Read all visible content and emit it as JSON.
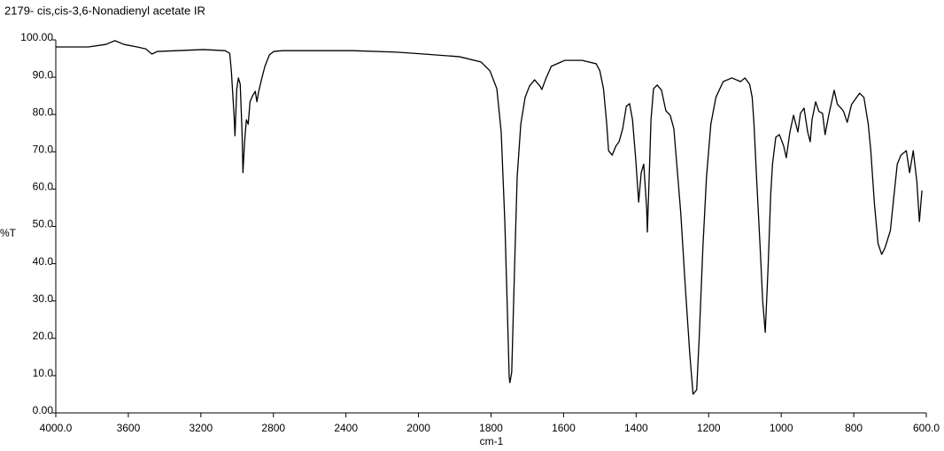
{
  "chart_data": {
    "type": "line",
    "title": "2179- cis,cis-3,6-Nonadienyl acetate IR",
    "x_label": "cm-1",
    "y_label": "%T",
    "xlim": [
      4000,
      600
    ],
    "ylim": [
      0,
      100
    ],
    "x_ticks_evenly_spaced": true,
    "xticks": [
      {
        "value": 4000,
        "label": "4000.0"
      },
      3600,
      3200,
      2800,
      2400,
      2000,
      1800,
      1600,
      1400,
      1200,
      1000,
      800,
      {
        "value": 600,
        "label": "600.0"
      }
    ],
    "yticks": [
      {
        "value": 0,
        "label": "0.00"
      },
      {
        "value": 10,
        "label": "10.0"
      },
      {
        "value": 20,
        "label": "20.0"
      },
      {
        "value": 30,
        "label": "30.0"
      },
      {
        "value": 40,
        "label": "40.0"
      },
      {
        "value": 50,
        "label": "50.0"
      },
      {
        "value": 60,
        "label": "60.0"
      },
      {
        "value": 70,
        "label": "70.0"
      },
      {
        "value": 80,
        "label": "80.0"
      },
      {
        "value": 90,
        "label": "90.0"
      },
      {
        "value": 100,
        "label": "100.00"
      }
    ],
    "grid": false,
    "color": "#000000",
    "x": [
      4000,
      3820,
      3723,
      3674,
      3625,
      3552,
      3504,
      3470,
      3440,
      3333,
      3187,
      3066,
      3041,
      3032,
      3017,
      3012,
      3002,
      2993,
      2983,
      2973,
      2968,
      2959,
      2949,
      2939,
      2929,
      2915,
      2900,
      2891,
      2881,
      2866,
      2847,
      2822,
      2798,
      2749,
      2360,
      2117,
      1985,
      1888,
      1828,
      1803,
      1784,
      1772,
      1762,
      1755,
      1750,
      1748,
      1743,
      1735,
      1728,
      1718,
      1706,
      1694,
      1680,
      1665,
      1660,
      1650,
      1634,
      1597,
      1549,
      1510,
      1500,
      1490,
      1481,
      1476,
      1466,
      1456,
      1447,
      1437,
      1427,
      1418,
      1410,
      1401,
      1393,
      1386,
      1379,
      1371,
      1369,
      1364,
      1359,
      1352,
      1342,
      1330,
      1318,
      1306,
      1296,
      1286,
      1277,
      1265,
      1252,
      1243,
      1233,
      1226,
      1216,
      1206,
      1194,
      1180,
      1160,
      1136,
      1112,
      1100,
      1087,
      1080,
      1075,
      1068,
      1058,
      1051,
      1044,
      1036,
      1029,
      1024,
      1015,
      1005,
      993,
      986,
      976,
      966,
      954,
      947,
      937,
      927,
      920,
      915,
      905,
      896,
      886,
      879,
      869,
      854,
      845,
      835,
      828,
      818,
      806,
      784,
      772,
      760,
      753,
      743,
      733,
      723,
      714,
      699,
      689,
      680,
      670,
      655,
      646,
      636,
      626,
      619,
      612
    ],
    "values": [
      98.1,
      98.1,
      98.8,
      99.8,
      98.8,
      98.1,
      97.6,
      96.2,
      96.9,
      97.1,
      97.4,
      97.1,
      96.4,
      91.7,
      79.8,
      74.3,
      86.9,
      89.8,
      88.1,
      75.3,
      64.4,
      72.7,
      78.6,
      77.4,
      83.4,
      85.0,
      86.2,
      83.4,
      86.2,
      89.3,
      92.9,
      96.0,
      96.9,
      97.1,
      97.1,
      96.7,
      96.2,
      95.5,
      94.1,
      91.7,
      86.9,
      75.3,
      51.3,
      27.6,
      9.7,
      8.1,
      10.9,
      39.4,
      63.2,
      77.4,
      84.6,
      87.6,
      89.3,
      87.6,
      86.7,
      89.3,
      92.9,
      94.5,
      94.5,
      93.6,
      91.7,
      86.9,
      77.4,
      70.3,
      69.1,
      71.5,
      72.7,
      76.2,
      82.2,
      82.9,
      78.6,
      67.9,
      56.5,
      64.4,
      66.7,
      54.9,
      48.5,
      63.2,
      78.6,
      86.9,
      87.9,
      86.5,
      81.0,
      79.8,
      76.2,
      64.4,
      53.7,
      34.7,
      15.7,
      5.0,
      6.2,
      20.4,
      44.2,
      63.2,
      77.4,
      84.6,
      88.8,
      89.8,
      88.8,
      89.8,
      88.1,
      84.6,
      77.4,
      63.2,
      44.2,
      29.9,
      21.6,
      39.4,
      58.4,
      66.7,
      73.9,
      74.6,
      71.5,
      68.4,
      75.3,
      79.8,
      75.3,
      80.3,
      81.7,
      75.3,
      72.7,
      78.6,
      83.4,
      80.8,
      80.3,
      74.6,
      79.8,
      86.5,
      82.7,
      81.7,
      80.8,
      77.9,
      82.7,
      85.7,
      84.6,
      77.4,
      70.3,
      56.1,
      45.4,
      42.5,
      44.2,
      48.9,
      58.4,
      66.7,
      69.1,
      70.3,
      64.4,
      70.3,
      62.0,
      51.3,
      59.6
    ]
  }
}
